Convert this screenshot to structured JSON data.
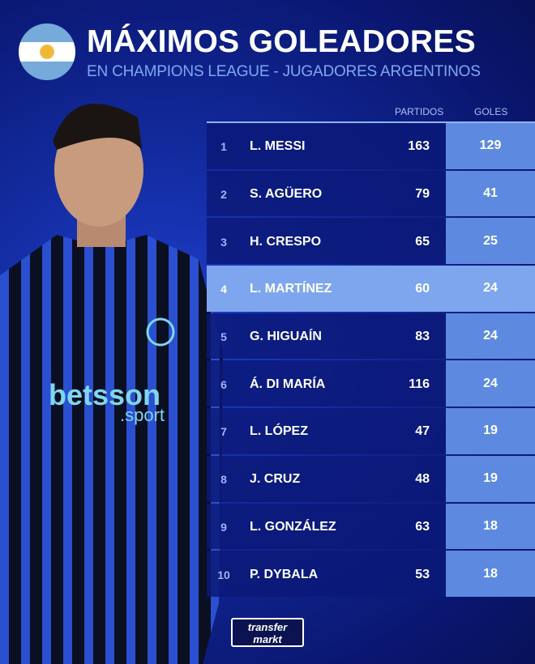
{
  "header": {
    "title": "MÁXIMOS GOLEADORES",
    "subtitle": "EN CHAMPIONS LEAGUE - JUGADORES ARGENTINOS",
    "flag": "argentina-flag"
  },
  "table": {
    "columns": {
      "games": "PARTIDOS",
      "goals": "GOLES"
    },
    "rows": [
      {
        "rank": "1",
        "name": "L. MESSI",
        "games": "163",
        "goals": "129"
      },
      {
        "rank": "2",
        "name": "S. AGÜERO",
        "games": "79",
        "goals": "41"
      },
      {
        "rank": "3",
        "name": "H. CRESPO",
        "games": "65",
        "goals": "25"
      },
      {
        "rank": "4",
        "name": "L. MARTÍNEZ",
        "games": "60",
        "goals": "24",
        "highlight": true
      },
      {
        "rank": "5",
        "name": "G. HIGUAÍN",
        "games": "83",
        "goals": "24"
      },
      {
        "rank": "6",
        "name": "Á. DI MARÍA",
        "games": "116",
        "goals": "24"
      },
      {
        "rank": "7",
        "name": "L. LÓPEZ",
        "games": "47",
        "goals": "19"
      },
      {
        "rank": "8",
        "name": "J. CRUZ",
        "games": "48",
        "goals": "19"
      },
      {
        "rank": "9",
        "name": "L. GONZÁLEZ",
        "games": "63",
        "goals": "18"
      },
      {
        "rank": "10",
        "name": "P. DYBALA",
        "games": "53",
        "goals": "18"
      }
    ]
  },
  "player_image": {
    "shirt_text": "betsson .sport"
  },
  "logo": {
    "line1": "transfer",
    "line2": "markt"
  },
  "colors": {
    "background": "#122a9c",
    "highlight": "#7ea6ee",
    "goals_column": "#5d8ae0",
    "subtitle": "#7fa8f0"
  }
}
